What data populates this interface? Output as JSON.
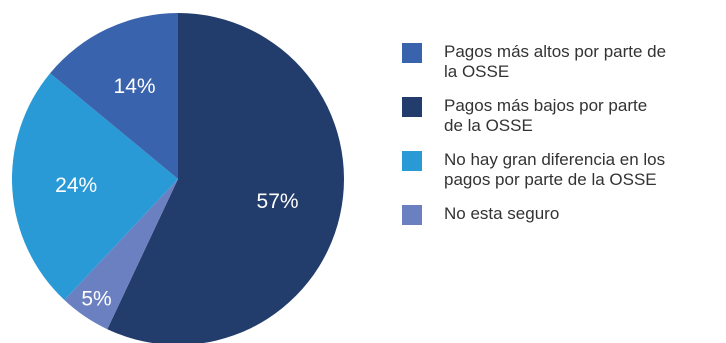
{
  "chart_data": {
    "type": "pie",
    "categories": [
      "Pagos más altos por parte de\nla OSSE",
      "Pagos más bajos por parte\nde la OSSE",
      "No hay gran diferencia en los\npagos  por parte de la OSSE",
      "No esta seguro"
    ],
    "values": [
      14,
      57,
      24,
      5
    ],
    "labels": [
      "14%",
      "57%",
      "24%",
      "5%"
    ],
    "colors": [
      "#3a63ad",
      "#223d6b",
      "#2a9ad7",
      "#6a80c1"
    ],
    "title": "",
    "legend_position": "right"
  }
}
